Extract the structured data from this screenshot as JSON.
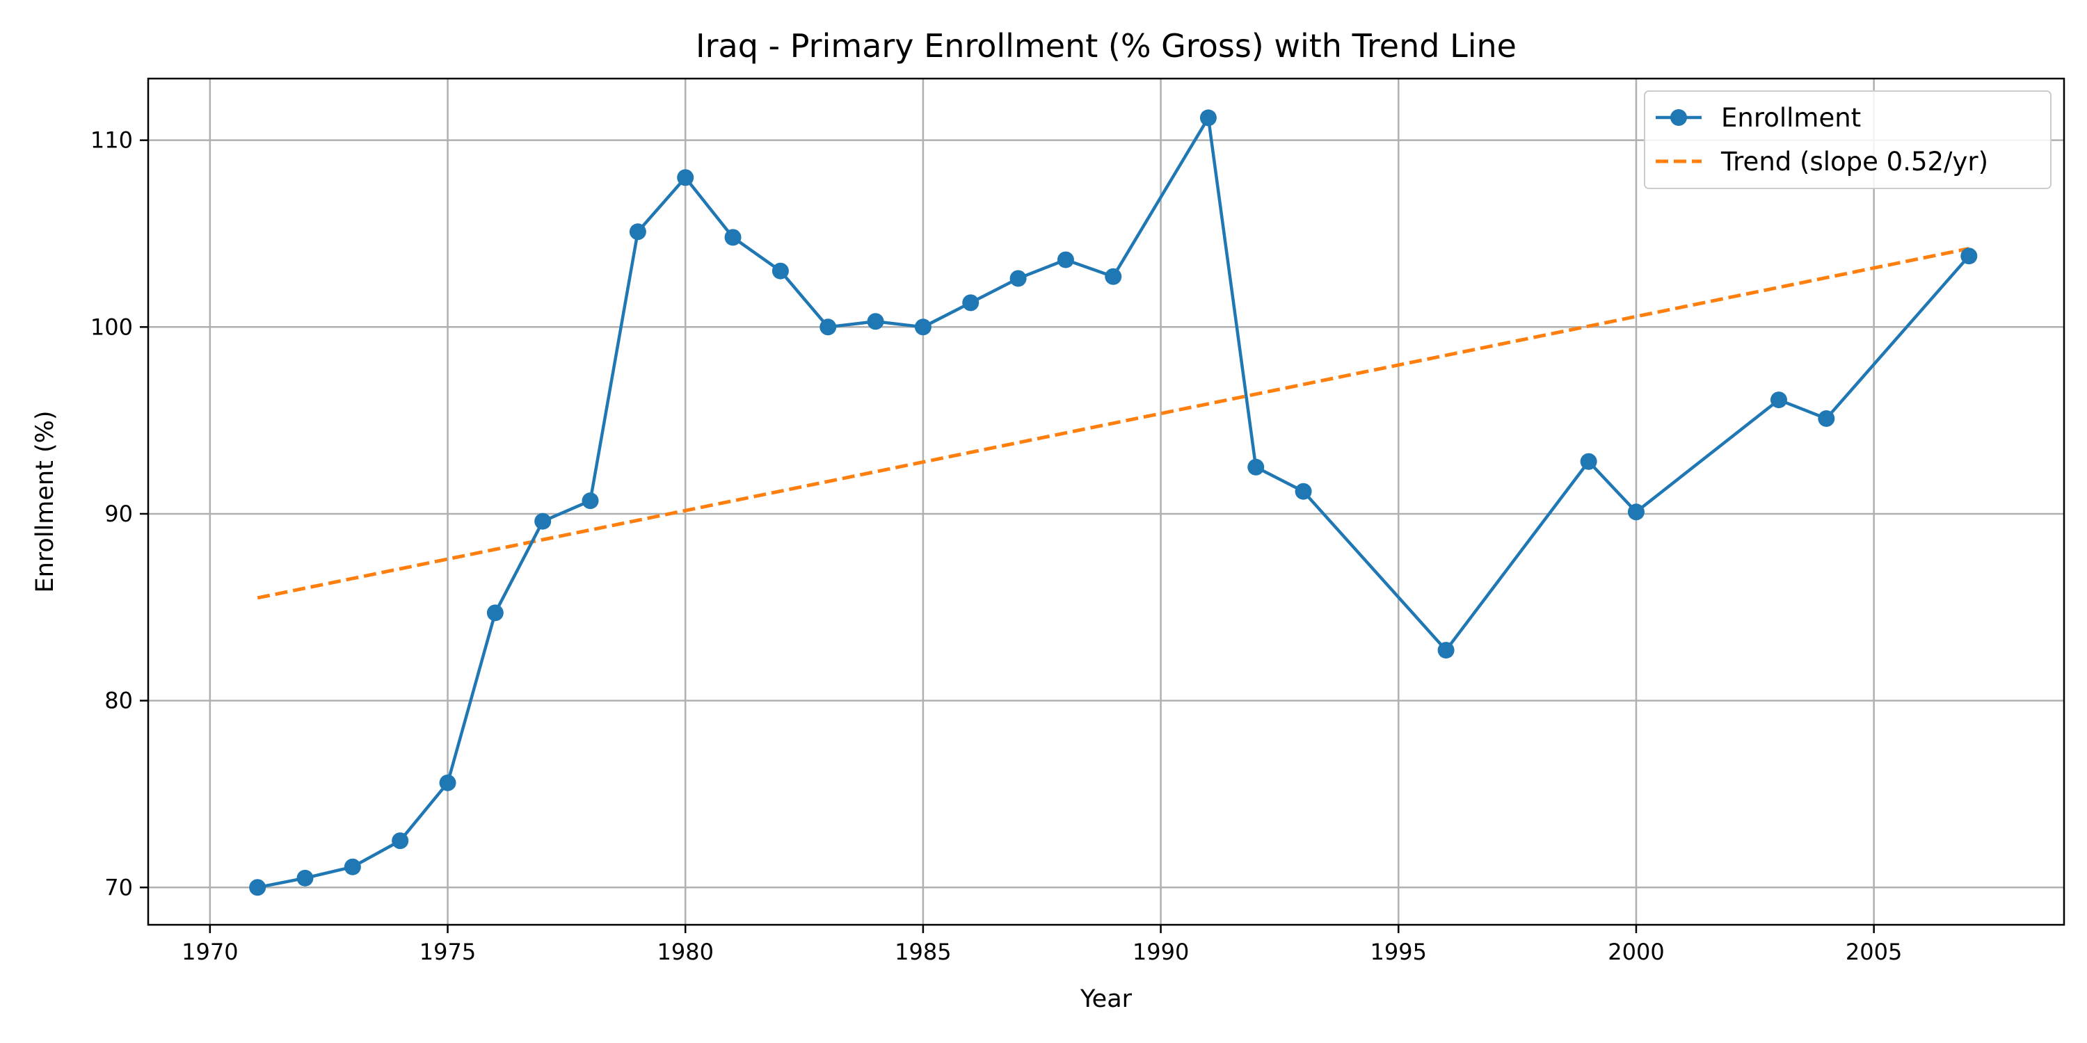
{
  "chart_data": {
    "type": "line",
    "title": "Iraq - Primary Enrollment (% Gross) with Trend Line",
    "xlabel": "Year",
    "ylabel": "Enrollment (%)",
    "xlim": [
      1968.7,
      2009.0
    ],
    "ylim": [
      68.0,
      113.3
    ],
    "xticks": [
      1970,
      1975,
      1980,
      1985,
      1990,
      1995,
      2000,
      2005
    ],
    "yticks": [
      70,
      80,
      90,
      100,
      110
    ],
    "grid": true,
    "legend_position": "top-right",
    "series": [
      {
        "name": "Enrollment",
        "style": "line-with-markers",
        "color": "#1f77b4",
        "points": [
          [
            1971,
            70.0
          ],
          [
            1972,
            70.5
          ],
          [
            1973,
            71.1
          ],
          [
            1974,
            72.5
          ],
          [
            1975,
            75.6
          ],
          [
            1976,
            84.7
          ],
          [
            1977,
            89.6
          ],
          [
            1978,
            90.7
          ],
          [
            1979,
            105.1
          ],
          [
            1980,
            108.0
          ],
          [
            1981,
            104.8
          ],
          [
            1982,
            103.0
          ],
          [
            1983,
            100.0
          ],
          [
            1984,
            100.3
          ],
          [
            1985,
            100.0
          ],
          [
            1986,
            101.3
          ],
          [
            1987,
            102.6
          ],
          [
            1988,
            103.6
          ],
          [
            1989,
            102.7
          ],
          [
            1991,
            111.2
          ],
          [
            1992,
            92.5
          ],
          [
            1993,
            91.2
          ],
          [
            1996,
            82.7
          ],
          [
            1999,
            92.8
          ],
          [
            2000,
            90.1
          ],
          [
            2003,
            96.1
          ],
          [
            2004,
            95.1
          ],
          [
            2007,
            103.8
          ]
        ]
      },
      {
        "name": "Trend (slope 0.52/yr)",
        "style": "dashed",
        "color": "#ff7f0e",
        "points": [
          [
            1971,
            85.5
          ],
          [
            2007,
            104.2
          ]
        ]
      }
    ]
  }
}
